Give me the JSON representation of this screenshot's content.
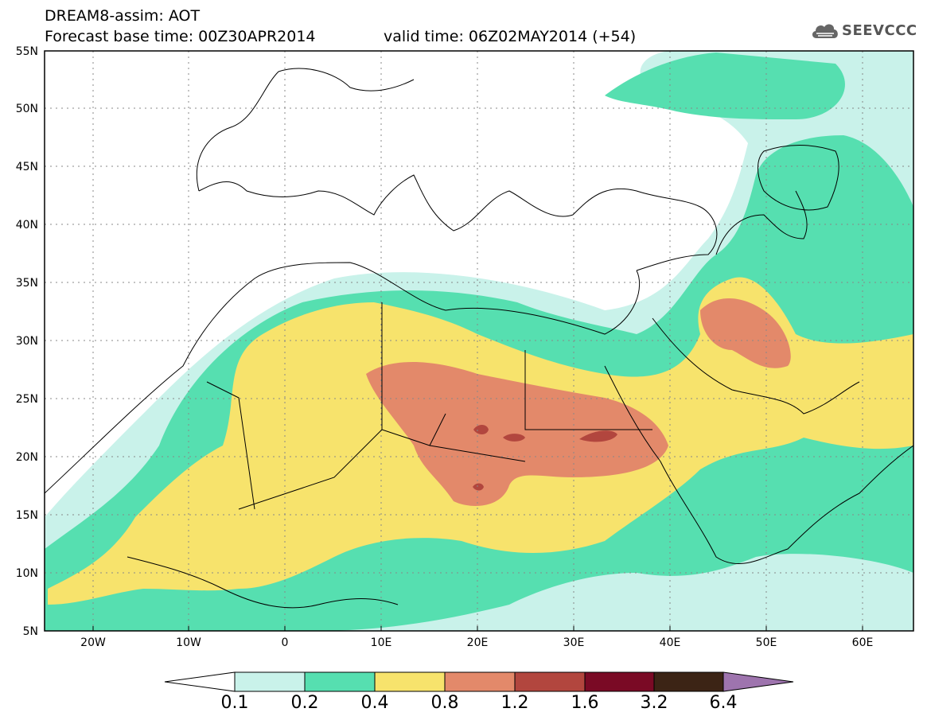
{
  "title": {
    "line1": "DREAM8-assim: AOT",
    "forecast": "Forecast base time: 00Z30APR2014",
    "valid": "valid time: 06Z02MAY2014 (+54)"
  },
  "logo": {
    "text": "SEEVCCC",
    "icon": "cloud-icon"
  },
  "axes": {
    "lat_labels": [
      "55N",
      "50N",
      "45N",
      "40N",
      "35N",
      "30N",
      "25N",
      "20N",
      "15N",
      "10N",
      "5N"
    ],
    "lon_labels": [
      "20W",
      "10W",
      "0",
      "10E",
      "20E",
      "30E",
      "40E",
      "50E",
      "60E"
    ]
  },
  "legend": {
    "labels": [
      "0.1",
      "0.2",
      "0.4",
      "0.8",
      "1.2",
      "1.6",
      "3.2",
      "6.4"
    ],
    "colors": [
      "#ffffff",
      "#c9f2ea",
      "#56dfb0",
      "#f7e36c",
      "#e3896a",
      "#b2463e",
      "#7a0a25",
      "#3c2415",
      "#9e74ae"
    ]
  }
}
